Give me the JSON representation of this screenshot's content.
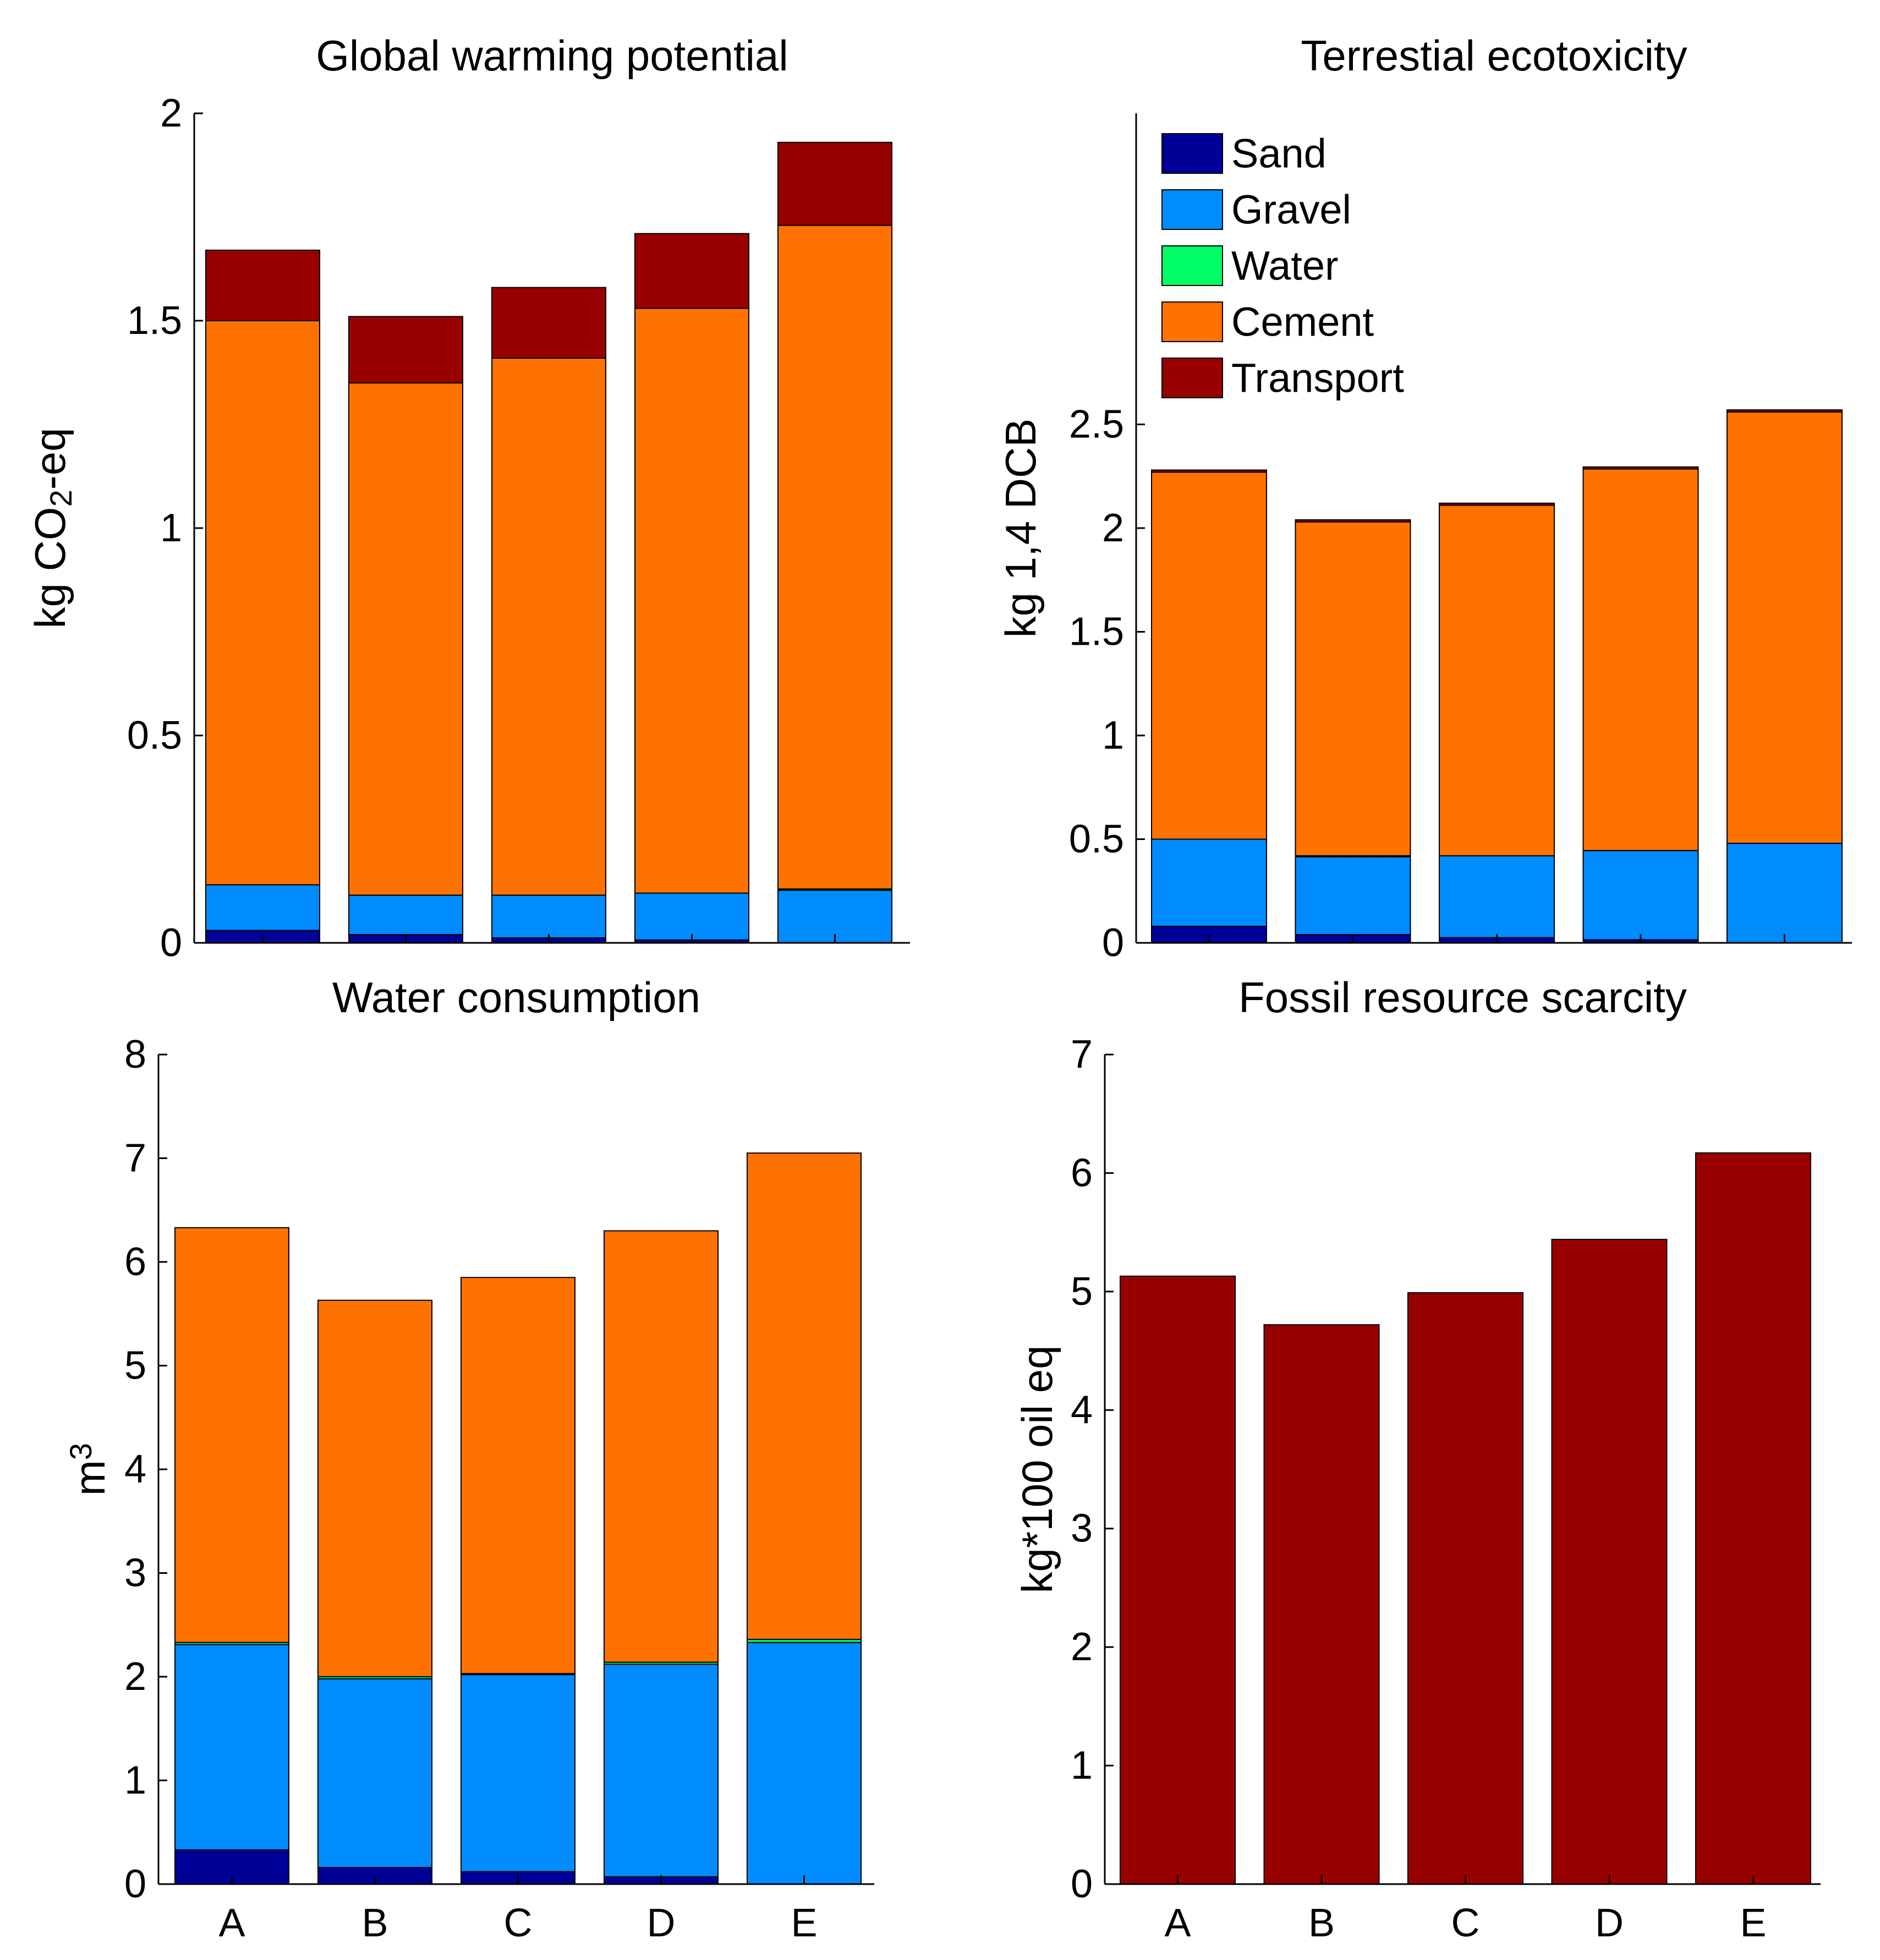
{
  "chart_data": [
    {
      "type": "bar",
      "stacked": true,
      "title": "Global warming potential",
      "ylabel_parts": [
        "kg CO",
        "2",
        "-eq"
      ],
      "xlabel": "",
      "categories": [
        "A",
        "B",
        "C",
        "D",
        "E"
      ],
      "show_category_labels": false,
      "ylim": [
        0,
        2
      ],
      "yticks": [
        0,
        0.5,
        1,
        1.5,
        2
      ],
      "ytick_labels": [
        "0",
        "0.5",
        "1",
        "1.5",
        "2"
      ],
      "series": [
        {
          "name": "Sand",
          "values": [
            0.03,
            0.02,
            0.012,
            0.007,
            0.0
          ]
        },
        {
          "name": "Gravel",
          "values": [
            0.11,
            0.095,
            0.103,
            0.113,
            0.127
          ]
        },
        {
          "name": "Water",
          "values": [
            0.0,
            0.0,
            0.0,
            0.0,
            0.003
          ]
        },
        {
          "name": "Cement",
          "values": [
            1.36,
            1.235,
            1.295,
            1.41,
            1.6
          ]
        },
        {
          "name": "Transport",
          "values": [
            0.17,
            0.16,
            0.17,
            0.18,
            0.2
          ]
        }
      ]
    },
    {
      "type": "bar",
      "stacked": true,
      "title": "Terrestial ecotoxicity",
      "ylabel_parts": [
        "kg 1,4 DCB"
      ],
      "xlabel": "",
      "categories": [
        "A",
        "B",
        "C",
        "D",
        "E"
      ],
      "show_category_labels": false,
      "ylim": [
        0,
        4
      ],
      "yticks": [
        0,
        0.5,
        1,
        1.5,
        2,
        2.5
      ],
      "ytick_labels": [
        "0",
        "0.5",
        "1",
        "1.5",
        "2",
        "2.5"
      ],
      "series": [
        {
          "name": "Sand",
          "values": [
            0.08,
            0.04,
            0.025,
            0.015,
            0.0
          ]
        },
        {
          "name": "Gravel",
          "values": [
            0.42,
            0.375,
            0.395,
            0.43,
            0.48
          ]
        },
        {
          "name": "Water",
          "values": [
            0.0,
            0.005,
            0.0,
            0.0,
            0.0
          ]
        },
        {
          "name": "Cement",
          "values": [
            1.77,
            1.61,
            1.69,
            1.84,
            2.08
          ]
        },
        {
          "name": "Transport",
          "values": [
            0.01,
            0.01,
            0.01,
            0.01,
            0.01
          ]
        }
      ]
    },
    {
      "type": "bar",
      "stacked": true,
      "title": "Water consumption",
      "ylabel_parts": [
        "m",
        "3"
      ],
      "xlabel": "",
      "categories": [
        "A",
        "B",
        "C",
        "D",
        "E"
      ],
      "show_category_labels": true,
      "ylim": [
        0,
        8
      ],
      "yticks": [
        0,
        1,
        2,
        3,
        4,
        5,
        6,
        7,
        8
      ],
      "ytick_labels": [
        "0",
        "1",
        "2",
        "3",
        "4",
        "5",
        "6",
        "7",
        "8"
      ],
      "series": [
        {
          "name": "Sand",
          "values": [
            0.33,
            0.16,
            0.12,
            0.07,
            0.0
          ]
        },
        {
          "name": "Gravel",
          "values": [
            1.98,
            1.82,
            1.9,
            2.05,
            2.33
          ]
        },
        {
          "name": "Water",
          "values": [
            0.02,
            0.02,
            0.01,
            0.02,
            0.03
          ]
        },
        {
          "name": "Cement",
          "values": [
            4.0,
            3.63,
            3.82,
            4.16,
            4.69
          ]
        },
        {
          "name": "Transport",
          "values": [
            0.0,
            0.0,
            0.0,
            0.0,
            0.0
          ]
        }
      ]
    },
    {
      "type": "bar",
      "stacked": false,
      "title": "Fossil resource scarcity",
      "ylabel_parts": [
        "kg*100 oil eq"
      ],
      "xlabel": "",
      "categories": [
        "A",
        "B",
        "C",
        "D",
        "E"
      ],
      "show_category_labels": true,
      "ylim": [
        0,
        7
      ],
      "yticks": [
        0,
        1,
        2,
        3,
        4,
        5,
        6,
        7
      ],
      "ytick_labels": [
        "0",
        "1",
        "2",
        "3",
        "4",
        "5",
        "6",
        "7"
      ],
      "series": [
        {
          "name": "Transport",
          "values": [
            5.13,
            4.72,
            4.99,
            5.44,
            6.17
          ]
        }
      ]
    }
  ],
  "legend": {
    "placement": "top-left of Terrestial ecotoxicity panel",
    "entries": [
      {
        "name": "Sand",
        "color": "#000099"
      },
      {
        "name": "Gravel",
        "color": "#008cff"
      },
      {
        "name": "Water",
        "color": "#00ff66"
      },
      {
        "name": "Cement",
        "color": "#ff7200"
      },
      {
        "name": "Transport",
        "color": "#990000"
      }
    ]
  },
  "colors": {
    "Sand": "#000099",
    "Gravel": "#008cff",
    "Water": "#00ff66",
    "Cement": "#ff7200",
    "Transport": "#990000",
    "axis": "#000000",
    "background": "#ffffff"
  }
}
